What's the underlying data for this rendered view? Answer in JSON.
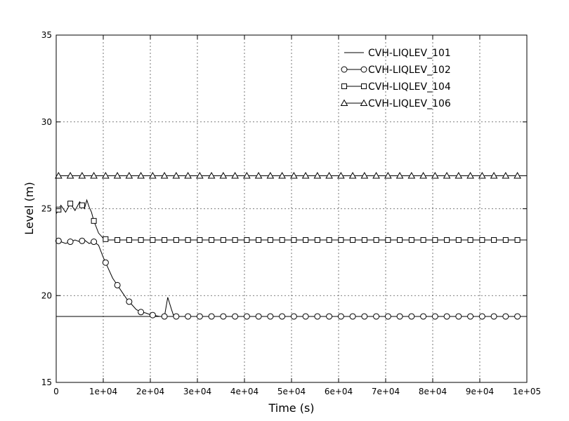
{
  "chart_data": {
    "type": "line",
    "xlabel": "Time (s)",
    "ylabel": "Level (m)",
    "xlim": [
      0,
      100000
    ],
    "ylim": [
      15,
      35
    ],
    "x_ticks": [
      0,
      10000,
      20000,
      30000,
      40000,
      50000,
      60000,
      70000,
      80000,
      90000,
      100000
    ],
    "x_tick_labels": [
      "0",
      "1e+04",
      "2e+04",
      "3e+04",
      "4e+04",
      "5e+04",
      "6e+04",
      "7e+04",
      "8e+04",
      "9e+04",
      "1e+05"
    ],
    "y_ticks": [
      15,
      20,
      25,
      30,
      35
    ],
    "y_tick_labels": [
      "15",
      "20",
      "25",
      "30",
      "35"
    ],
    "grid": true,
    "legend_position": "top-right",
    "series": [
      {
        "name": "CVH-LIQLEV_101",
        "marker": "none",
        "x": [
          0,
          100000
        ],
        "y": [
          18.8,
          18.8
        ]
      },
      {
        "name": "CVH-LIQLEV_102",
        "marker": "circle",
        "x": [
          0,
          1000,
          2000,
          3000,
          4000,
          5000,
          6000,
          7000,
          8000,
          9000,
          10000,
          11000,
          12000,
          13000,
          14000,
          15000,
          16000,
          17000,
          18000,
          19000,
          20000,
          21000,
          22000,
          23000,
          23700,
          24500,
          25000,
          26000,
          27000,
          28000,
          30000,
          32000,
          35000,
          40000,
          50000,
          60000,
          70000,
          80000,
          90000,
          100000
        ],
        "y": [
          23.2,
          23.1,
          23.0,
          23.1,
          23.2,
          23.1,
          23.2,
          23.0,
          23.1,
          22.9,
          22.2,
          21.6,
          21.0,
          20.6,
          20.2,
          19.8,
          19.5,
          19.2,
          19.05,
          19.0,
          18.9,
          18.85,
          18.8,
          18.8,
          19.9,
          19.2,
          18.8,
          18.8,
          18.8,
          18.8,
          18.8,
          18.8,
          18.8,
          18.8,
          18.8,
          18.8,
          18.8,
          18.8,
          18.8,
          18.8
        ]
      },
      {
        "name": "CVH-LIQLEV_104",
        "marker": "square",
        "x": [
          0,
          1000,
          2000,
          3000,
          4000,
          5000,
          6000,
          6500,
          7000,
          7500,
          8000,
          9000,
          10000,
          11000,
          12000,
          14000,
          16000,
          20000,
          30000,
          40000,
          50000,
          60000,
          70000,
          80000,
          90000,
          100000
        ],
        "y": [
          24.7,
          25.2,
          24.8,
          25.3,
          24.9,
          25.4,
          25.0,
          25.5,
          25.1,
          24.8,
          24.3,
          23.6,
          23.3,
          23.2,
          23.2,
          23.2,
          23.2,
          23.2,
          23.2,
          23.2,
          23.2,
          23.2,
          23.2,
          23.2,
          23.2,
          23.2
        ]
      },
      {
        "name": "CVH-LIQLEV_106",
        "marker": "triangle",
        "x": [
          0,
          100000
        ],
        "y": [
          26.9,
          26.9
        ]
      }
    ]
  }
}
